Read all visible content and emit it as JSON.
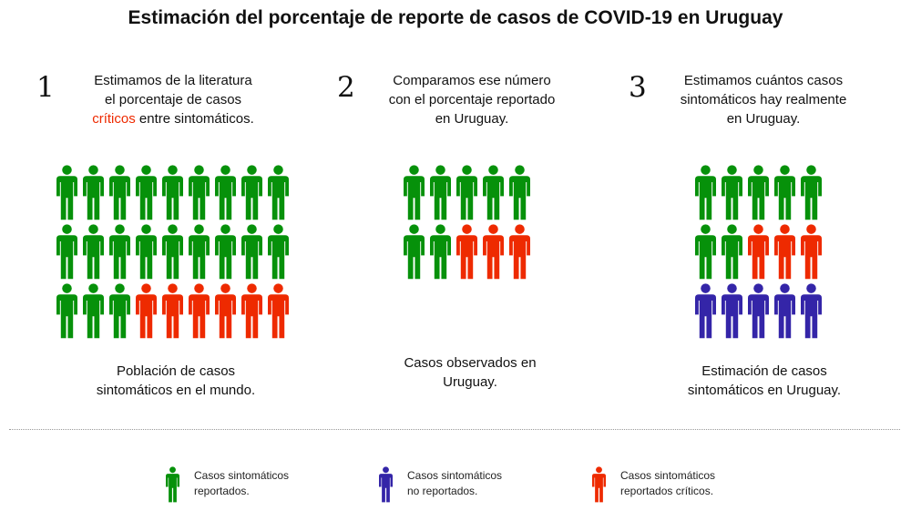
{
  "title": "Estimación del porcentaje de reporte de casos de COVID-19 en Uruguay",
  "colors": {
    "reported": "#06910a",
    "unreported": "#3425a8",
    "critical": "#ee2a00"
  },
  "steps": [
    {
      "number": "1",
      "lines": [
        "Estimamos de la literatura",
        "el porcentaje de casos"
      ],
      "last_line_highlight": "críticos",
      "last_line_rest": " entre sintomáticos.",
      "caption": [
        "Población de casos",
        "sintomáticos en el mundo."
      ],
      "grid": {
        "columns": 9,
        "rows": [
          [
            "reported",
            "reported",
            "reported",
            "reported",
            "reported",
            "reported",
            "reported",
            "reported",
            "reported"
          ],
          [
            "reported",
            "reported",
            "reported",
            "reported",
            "reported",
            "reported",
            "reported",
            "reported",
            "reported"
          ],
          [
            "reported",
            "reported",
            "reported",
            "critical",
            "critical",
            "critical",
            "critical",
            "critical",
            "critical"
          ]
        ]
      }
    },
    {
      "number": "2",
      "lines": [
        "Comparamos ese número",
        "con el porcentaje reportado",
        "en Uruguay."
      ],
      "caption": [
        "Casos observados en",
        "Uruguay."
      ],
      "grid": {
        "columns": 5,
        "rows": [
          [
            "reported",
            "reported",
            "reported",
            "reported",
            "reported"
          ],
          [
            "reported",
            "reported",
            "critical",
            "critical",
            "critical"
          ]
        ]
      }
    },
    {
      "number": "3",
      "lines": [
        "Estimamos cuántos casos",
        "sintomáticos hay realmente",
        "en Uruguay."
      ],
      "caption": [
        "Estimación de casos",
        "sintomáticos en Uruguay."
      ],
      "grid": {
        "columns": 5,
        "rows": [
          [
            "reported",
            "reported",
            "reported",
            "reported",
            "reported"
          ],
          [
            "reported",
            "reported",
            "critical",
            "critical",
            "critical"
          ],
          [
            "unreported",
            "unreported",
            "unreported",
            "unreported",
            "unreported"
          ]
        ]
      }
    }
  ],
  "legend": [
    {
      "type": "reported",
      "lines": [
        "Casos sintomáticos",
        "reportados."
      ]
    },
    {
      "type": "unreported",
      "lines": [
        "Casos sintomáticos",
        "no reportados."
      ]
    },
    {
      "type": "critical",
      "lines": [
        "Casos sintomáticos",
        "reportados críticos."
      ]
    }
  ]
}
